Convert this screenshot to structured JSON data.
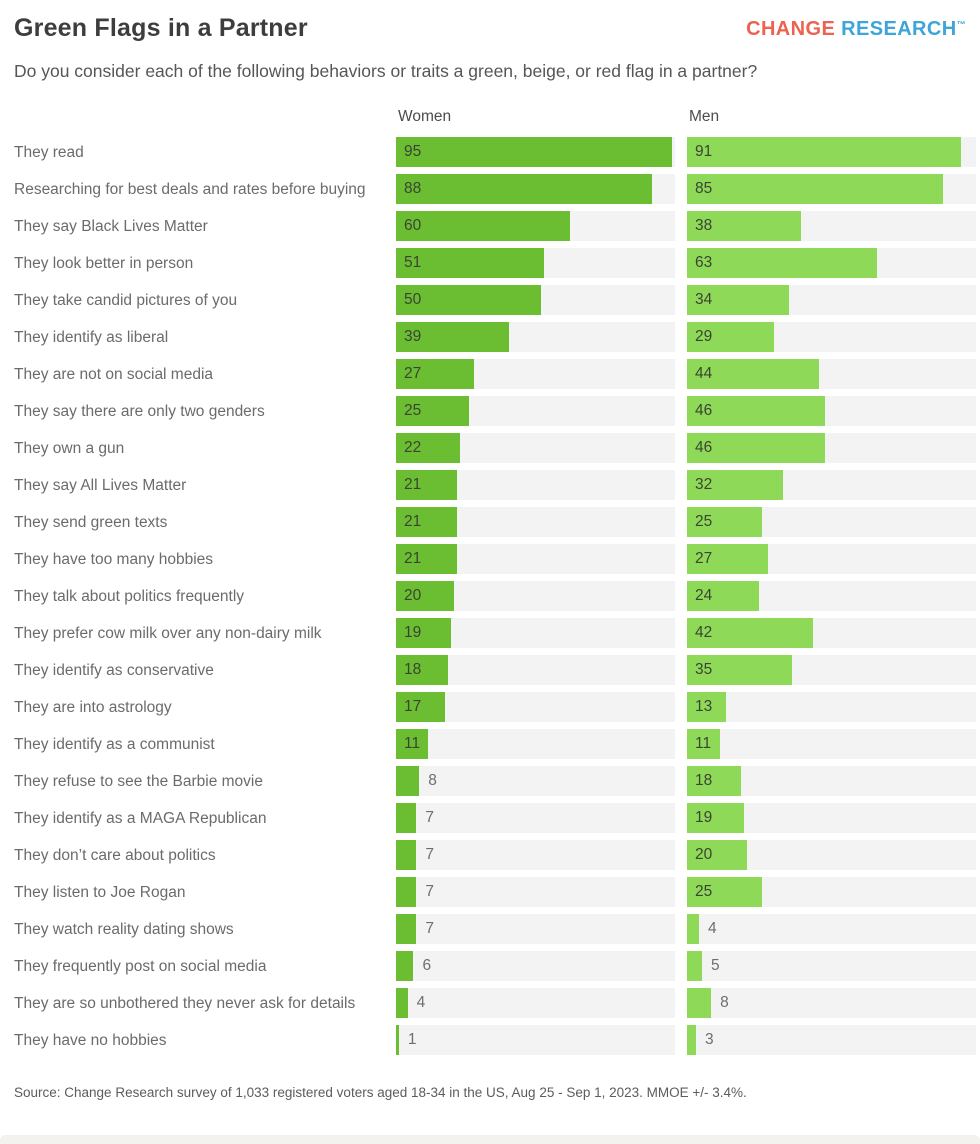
{
  "header": {
    "title": "Green Flags in a Partner",
    "subtitle": "Do you consider each of the following behaviors or traits a green, beige, or red flag in a partner?",
    "logo": {
      "part1": "CHANGE",
      "part2": "RESEARCH",
      "tm": "™",
      "part1_color": "#ec6352",
      "part2_color": "#3da5d9"
    }
  },
  "chart_data": {
    "type": "bar",
    "orientation": "horizontal",
    "column_headers": [
      "Women",
      "Men"
    ],
    "categories": [
      "They read",
      "Researching for best deals and rates before buying",
      "They say Black Lives Matter",
      "They look better in person",
      "They take candid pictures of you",
      "They identify as liberal",
      "They are not on social media",
      "They say there are only two genders",
      "They own a gun",
      "They say All Lives Matter",
      "They send green texts",
      "They have too many hobbies",
      "They talk about politics frequently",
      "They prefer cow milk over any non-dairy milk",
      "They identify as conservative",
      "They are into astrology",
      "They identify as a communist",
      "They refuse to see the Barbie movie",
      "They identify as a MAGA Republican",
      "They don’t care about politics",
      "They listen to Joe Rogan",
      "They watch reality dating shows",
      "They frequently post on social media",
      "They are so unbothered they never ask for details",
      "They have no hobbies"
    ],
    "series": [
      {
        "name": "Women",
        "color": "#6bbd31",
        "values": [
          95,
          88,
          60,
          51,
          50,
          39,
          27,
          25,
          22,
          21,
          21,
          21,
          20,
          19,
          18,
          17,
          11,
          8,
          7,
          7,
          7,
          7,
          6,
          4,
          1
        ]
      },
      {
        "name": "Men",
        "color": "#8fd958",
        "values": [
          91,
          85,
          38,
          63,
          34,
          29,
          44,
          46,
          46,
          32,
          25,
          27,
          24,
          42,
          35,
          13,
          11,
          18,
          19,
          20,
          25,
          4,
          5,
          8,
          3
        ]
      }
    ],
    "xlim": [
      0,
      96
    ],
    "inside_label_min": 10,
    "track_color": "#f3f3f3",
    "grid": false,
    "legend_position": "column-headers"
  },
  "footer": {
    "source": "Source: Change Research survey of 1,033 registered voters aged 18-34 in the US, Aug 25 - Sep 1, 2023. MMOE +/- 3.4%."
  }
}
